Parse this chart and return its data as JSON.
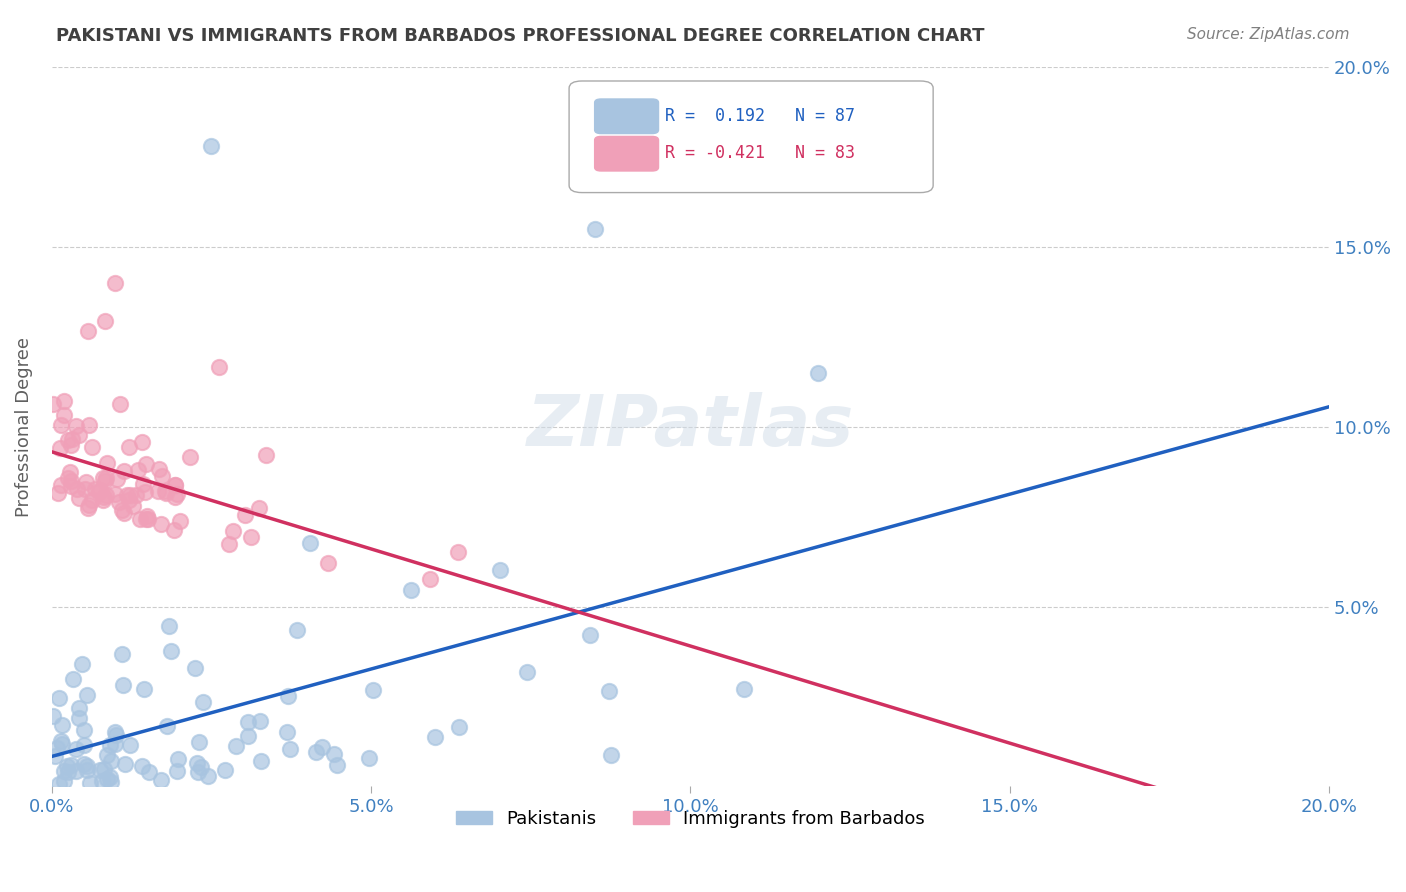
{
  "title": "PAKISTANI VS IMMIGRANTS FROM BARBADOS PROFESSIONAL DEGREE CORRELATION CHART",
  "source_text": "Source: ZipAtlas.com",
  "xlabel": "",
  "ylabel": "Professional Degree",
  "xlim": [
    0.0,
    0.2
  ],
  "ylim": [
    0.0,
    0.2
  ],
  "xtick_labels": [
    "0.0%",
    "5.0%",
    "10.0%",
    "15.0%",
    "20.0%"
  ],
  "xtick_vals": [
    0.0,
    0.05,
    0.1,
    0.15,
    0.2
  ],
  "ytick_labels": [
    "5.0%",
    "10.0%",
    "15.0%",
    "20.0%"
  ],
  "ytick_vals": [
    0.05,
    0.1,
    0.15,
    0.2
  ],
  "legend_r_blue": "R =  0.192",
  "legend_n_blue": "N = 87",
  "legend_r_pink": "R = -0.421",
  "legend_n_pink": "N = 83",
  "blue_color": "#a8c4e0",
  "pink_color": "#f0a0b8",
  "trend_blue_color": "#2060c0",
  "trend_pink_color": "#d03060",
  "blue_r": 0.192,
  "pink_r": -0.421,
  "blue_seed": 42,
  "pink_seed": 123,
  "blue_n": 87,
  "pink_n": 83,
  "watermark": "ZIPatlas",
  "background_color": "#ffffff",
  "grid_color": "#cccccc",
  "title_color": "#404040",
  "axis_label_color": "#4080c0",
  "legend_r_color_blue": "#2060c0",
  "legend_r_color_pink": "#d03060"
}
